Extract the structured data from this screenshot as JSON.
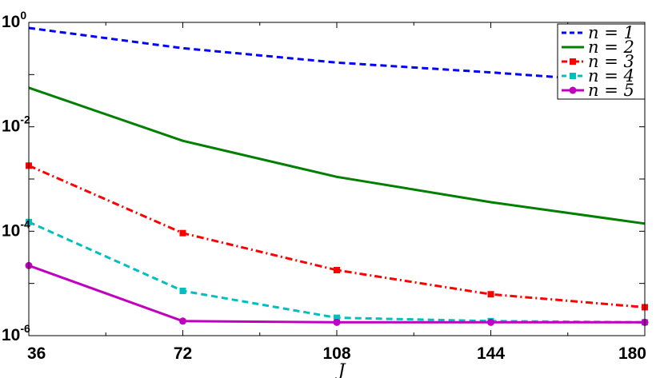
{
  "chart_data": {
    "type": "line",
    "xlabel": "J",
    "ylabel": "",
    "title": "",
    "x": [
      36,
      72,
      108,
      144,
      180
    ],
    "xlim": [
      36,
      180
    ],
    "ylim": [
      1e-06,
      1
    ],
    "yscale": "log",
    "x_ticks": [
      "36",
      "72",
      "108",
      "144",
      "180"
    ],
    "y_ticks": [
      {
        "base": "10",
        "exp": "0",
        "value": 1
      },
      {
        "base": "10",
        "exp": "-2",
        "value": 0.01
      },
      {
        "base": "10",
        "exp": "-4",
        "value": 0.0001
      },
      {
        "base": "10",
        "exp": "-6",
        "value": 1e-06
      }
    ],
    "grid": false,
    "legend_position": "top-right",
    "series": [
      {
        "name": "n = 1",
        "color": "#0000ff",
        "dash": "dashed",
        "marker": "none",
        "values": [
          0.78,
          0.32,
          0.17,
          0.11,
          0.068
        ]
      },
      {
        "name": "n = 2",
        "color": "#007f00",
        "dash": "solid",
        "marker": "none",
        "values": [
          0.056,
          0.0054,
          0.0011,
          0.00036,
          0.00014
        ]
      },
      {
        "name": "n = 3",
        "color": "#ff0000",
        "dash": "dashdot",
        "marker": "square",
        "values": [
          0.0018,
          9.2e-05,
          1.8e-05,
          6.2e-06,
          3.5e-06
        ]
      },
      {
        "name": "n = 4",
        "color": "#00bfbf",
        "dash": "dashed",
        "marker": "square",
        "values": [
          0.00015,
          7.2e-06,
          2.2e-06,
          1.9e-06,
          1.8e-06
        ]
      },
      {
        "name": "n = 5",
        "color": "#bf00bf",
        "dash": "solid",
        "marker": "circle",
        "values": [
          2.2e-05,
          1.9e-06,
          1.8e-06,
          1.8e-06,
          1.8e-06
        ]
      }
    ]
  }
}
